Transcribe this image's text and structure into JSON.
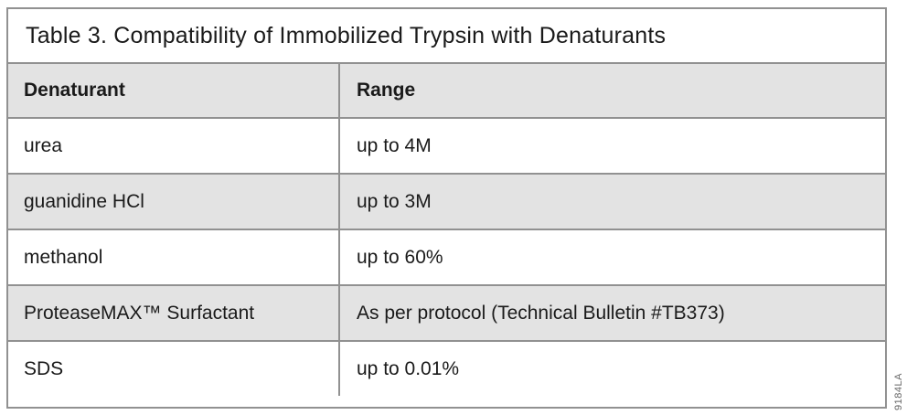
{
  "table": {
    "title": "Table 3. Compatibility of Immobilized Trypsin with Denaturants",
    "columns": {
      "denaturant": "Denaturant",
      "range": "Range"
    },
    "rows": [
      {
        "denaturant": "urea",
        "range": "up to 4M"
      },
      {
        "denaturant": "guanidine HCl",
        "range": "up to 3M"
      },
      {
        "denaturant": "methanol",
        "range": "up to 60%"
      },
      {
        "denaturant": "ProteaseMAX™ Surfactant",
        "range": "As per protocol (Technical Bulletin #TB373)"
      },
      {
        "denaturant": "SDS",
        "range": "up to 0.01%"
      }
    ]
  },
  "figure_number": "9184LA",
  "colors": {
    "row_shaded": "#e3e3e3",
    "border": "#919191",
    "text": "#1a1a1a"
  }
}
